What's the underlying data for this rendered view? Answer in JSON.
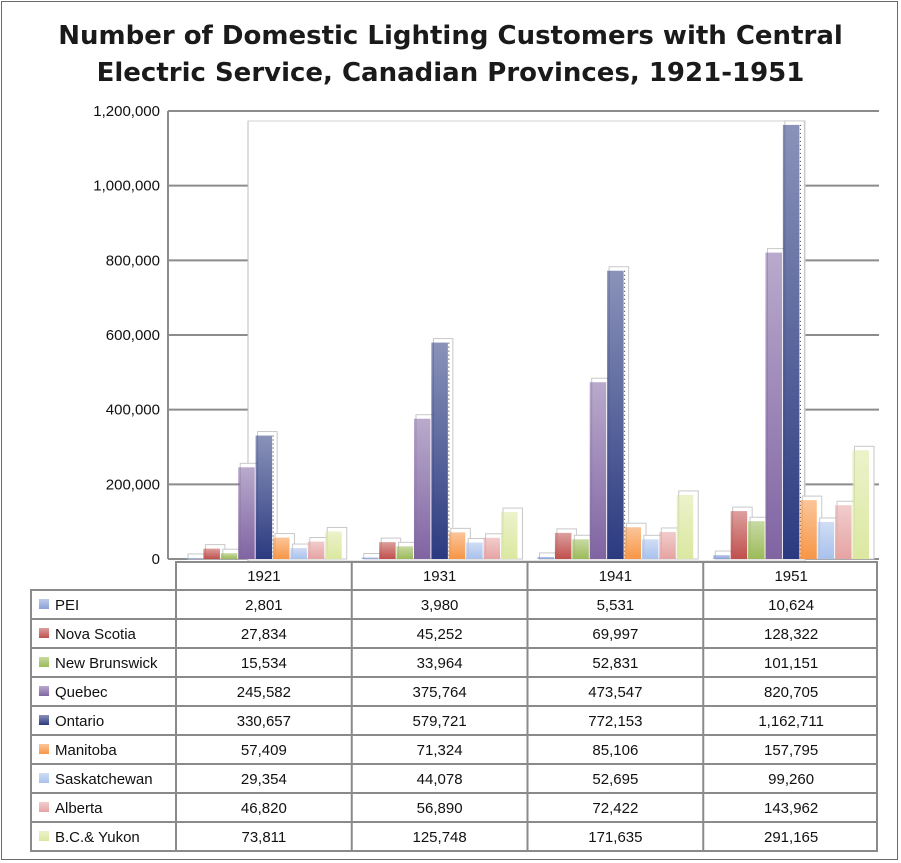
{
  "chart_data": {
    "type": "bar",
    "title_line1": "Number of Domestic Lighting Customers with Central",
    "title_line2": "Electric Service, Canadian Provinces, 1921-1951",
    "categories": [
      "1921",
      "1931",
      "1941",
      "1951"
    ],
    "ylim": [
      0,
      1200000
    ],
    "yticks": [
      0,
      200000,
      400000,
      600000,
      800000,
      1000000,
      1200000
    ],
    "ytick_labels": [
      "0",
      "200,000",
      "400,000",
      "600,000",
      "800,000",
      "1,000,000",
      "1,200,000"
    ],
    "series": [
      {
        "name": "PEI",
        "color": "#8aa0d6",
        "values": [
          2801,
          3980,
          5531,
          10624
        ],
        "labels": [
          "2,801",
          "3,980",
          "5,531",
          "10,624"
        ]
      },
      {
        "name": "Nova Scotia",
        "color": "#c0504d",
        "values": [
          27834,
          45252,
          69997,
          128322
        ],
        "labels": [
          "27,834",
          "45,252",
          "69,997",
          "128,322"
        ]
      },
      {
        "name": "New Brunswick",
        "color": "#9bbb59",
        "values": [
          15534,
          33964,
          52831,
          101151
        ],
        "labels": [
          "15,534",
          "33,964",
          "52,831",
          "101,151"
        ]
      },
      {
        "name": "Quebec",
        "color": "#8064a2",
        "values": [
          245582,
          375764,
          473547,
          820705
        ],
        "labels": [
          "245,582",
          "375,764",
          "473,547",
          "820,705"
        ]
      },
      {
        "name": "Ontario",
        "color": "#2b3a80",
        "values": [
          330657,
          579721,
          772153,
          1162711
        ],
        "labels": [
          "330,657",
          "579,721",
          "772,153",
          "1,162,711"
        ]
      },
      {
        "name": "Manitoba",
        "color": "#f79646",
        "values": [
          57409,
          71324,
          85106,
          157795
        ],
        "labels": [
          "57,409",
          "71,324",
          "85,106",
          "157,795"
        ]
      },
      {
        "name": "Saskatchewan",
        "color": "#a9c1ec",
        "values": [
          29354,
          44078,
          52695,
          99260
        ],
        "labels": [
          "29,354",
          "44,078",
          "52,695",
          "99,260"
        ]
      },
      {
        "name": "Alberta",
        "color": "#e6a3a3",
        "values": [
          46820,
          56890,
          72422,
          143962
        ],
        "labels": [
          "46,820",
          "56,890",
          "72,422",
          "143,962"
        ]
      },
      {
        "name": "B.C.& Yukon",
        "color": "#dbe8a0",
        "values": [
          73811,
          125748,
          171635,
          291165
        ],
        "labels": [
          "73,811",
          "125,748",
          "171,635",
          "291,165"
        ]
      }
    ]
  }
}
